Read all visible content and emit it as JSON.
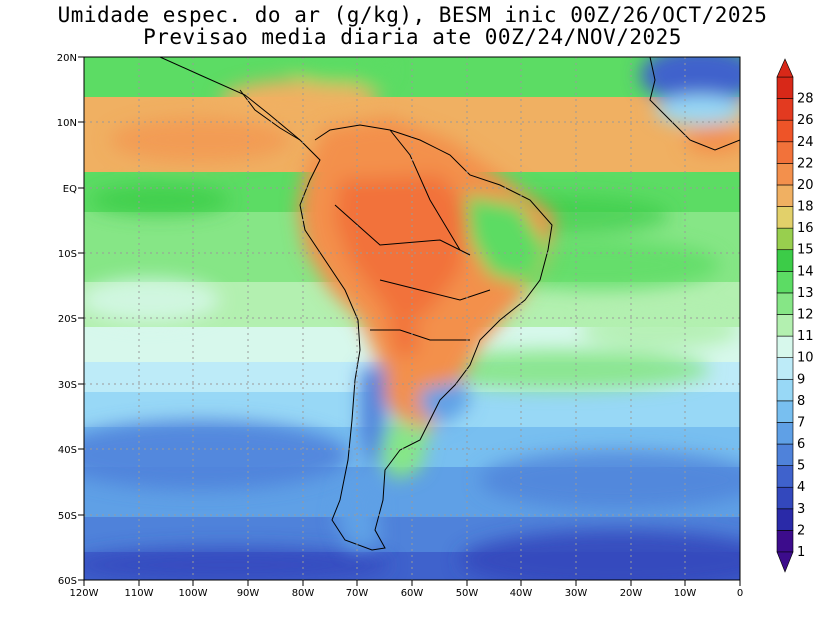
{
  "title_line1": "Umidade espec. do ar (g/kg), BESM inic 00Z/26/OCT/2025",
  "title_line2": "Previsao media diaria ate 00Z/24/NOV/2025",
  "lat_labels": [
    "20N",
    "10N",
    "EQ",
    "10S",
    "20S",
    "30S",
    "40S",
    "50S",
    "60S"
  ],
  "lon_labels": [
    "120W",
    "110W",
    "100W",
    "90W",
    "80W",
    "70W",
    "60W",
    "50W",
    "40W",
    "30W",
    "20W",
    "10W",
    "0"
  ],
  "legend": {
    "values": [
      "1",
      "2",
      "3",
      "4",
      "5",
      "6",
      "7",
      "8",
      "9",
      "10",
      "11",
      "12",
      "13",
      "14",
      "15",
      "16",
      "18",
      "20",
      "22",
      "24",
      "26",
      "28"
    ],
    "colors": [
      "#3c0c8c",
      "#2a2aa8",
      "#3348bd",
      "#3f62cc",
      "#4f82da",
      "#5fa0e6",
      "#78bff0",
      "#98d8f6",
      "#bdebf8",
      "#d7f8ec",
      "#b3f0b0",
      "#86e686",
      "#5cdc64",
      "#3ccc48",
      "#98cf4e",
      "#e2d06a",
      "#f0b062",
      "#f3904c",
      "#f2723a",
      "#ee5428",
      "#e33a20",
      "#d82818"
    ]
  },
  "chart_data": {
    "type": "heatmap",
    "variable": "Umidade espec. do ar (g/kg)",
    "lon_range": [
      -120,
      0
    ],
    "lat_range": [
      -60,
      20
    ],
    "contour_levels": [
      1,
      2,
      3,
      4,
      5,
      6,
      7,
      8,
      9,
      10,
      11,
      12,
      13,
      14,
      15,
      16,
      18,
      20,
      22,
      24,
      26,
      28
    ]
  }
}
